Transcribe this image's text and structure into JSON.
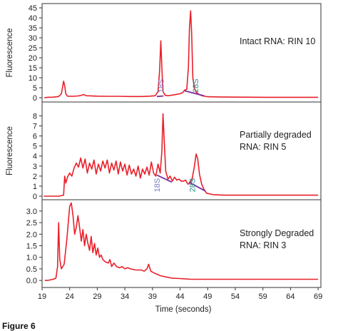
{
  "caption": "Figure 6",
  "chart_data": {
    "type": "line",
    "xlabel": "Time (seconds)",
    "xlim": [
      19,
      69.5
    ],
    "xticks": [
      "19",
      "24",
      "29",
      "34",
      "39",
      "44",
      "49",
      "54",
      "59",
      "64",
      "69"
    ],
    "color": "#e8202a",
    "baseline_color": "#7b2fa0",
    "panels": [
      {
        "ylabel": "Fluorescence",
        "ylim": [
          0,
          45
        ],
        "yticks": [
          "0",
          "5",
          "10",
          "15",
          "20",
          "25",
          "30",
          "35",
          "40",
          "45"
        ],
        "yvals": [
          0,
          5,
          10,
          15,
          20,
          25,
          30,
          35,
          40,
          45
        ],
        "annotation": [
          "Intact RNA: RIN 10"
        ],
        "peak_labels": [
          {
            "text": "18S",
            "x": 41.0,
            "y": 2.5,
            "cls": "peak18"
          },
          {
            "text": "28S",
            "x": 47.3,
            "y": 2.5,
            "cls": "peak28"
          }
        ],
        "baselines": [
          [
            [
              39.8,
              0.6
            ],
            [
              41.0,
              0.9
            ]
          ],
          [
            [
              44.8,
              3.5
            ],
            [
              48.3,
              1.0
            ]
          ]
        ],
        "series": {
          "x": [
            19.4,
            20,
            21,
            22,
            22.5,
            22.9,
            23.1,
            23.3,
            23.6,
            24.5,
            25.5,
            26,
            26.5,
            27,
            29,
            31,
            33,
            35,
            37,
            38.5,
            39.5,
            40,
            40.3,
            40.5,
            40.7,
            40.9,
            41.3,
            41.8,
            43,
            44,
            44.5,
            44.8,
            45.2,
            45.5,
            45.7,
            45.9,
            46.1,
            46.3,
            46.6,
            47,
            47.5,
            48,
            49,
            51,
            55,
            60,
            65,
            69
          ],
          "y": [
            0,
            0.2,
            0.3,
            0.6,
            2,
            8.3,
            6,
            2,
            0.8,
            0.7,
            0.9,
            1.1,
            1.6,
            1,
            0.8,
            0.7,
            0.7,
            0.6,
            0.6,
            0.8,
            1,
            3,
            14,
            28.5,
            15,
            3,
            1.2,
            1,
            1.5,
            2,
            2.6,
            3.8,
            4.2,
            15,
            35,
            43.5,
            32,
            10,
            4.5,
            2.5,
            1.5,
            1.0,
            0.5,
            0.4,
            0.3,
            0.2,
            0.2,
            0.2
          ]
        }
      },
      {
        "ylabel": "Fluorescence",
        "ylim": [
          0,
          8.6
        ],
        "yticks": [
          "0",
          "1",
          "2",
          "3",
          "4",
          "5",
          "6",
          "7",
          "8"
        ],
        "yvals": [
          0,
          1,
          2,
          3,
          4,
          5,
          6,
          7,
          8
        ],
        "annotation": [
          "Partially degraded",
          "RNA: RIN 5"
        ],
        "peak_labels": [
          {
            "text": "18S",
            "x": 40.3,
            "y": 0.4,
            "cls": "peak18"
          },
          {
            "text": "28S",
            "x": 46.7,
            "y": 0.4,
            "cls": "peak28"
          }
        ],
        "baselines": [
          [
            [
              39.8,
              2.1
            ],
            [
              42.5,
              1.4
            ]
          ],
          [
            [
              45.6,
              1.4
            ],
            [
              48.6,
              0.5
            ]
          ]
        ],
        "series": {
          "x": [
            19.3,
            20,
            21,
            22,
            22.9,
            23.1,
            23.3,
            23.6,
            24.0,
            24.4,
            24.8,
            25.2,
            25.6,
            26.0,
            26.4,
            26.8,
            27.2,
            27.6,
            28.0,
            28.4,
            28.8,
            29.2,
            29.6,
            30.0,
            30.4,
            30.8,
            31.2,
            31.6,
            32.0,
            32.4,
            32.8,
            33.2,
            33.6,
            34.0,
            34.4,
            34.8,
            35.2,
            35.6,
            36.0,
            36.4,
            36.8,
            37.2,
            37.6,
            38.0,
            38.4,
            38.8,
            39.2,
            39.6,
            40.0,
            40.4,
            40.7,
            40.9,
            41.1,
            41.4,
            41.8,
            42.2,
            42.6,
            43.0,
            43.4,
            43.8,
            44.2,
            44.6,
            45.0,
            45.4,
            45.8,
            46.2,
            46.6,
            46.9,
            47.2,
            47.5,
            47.9,
            48.3,
            48.8,
            50,
            52,
            55,
            60,
            65,
            69
          ],
          "y": [
            0,
            0,
            0,
            0,
            0.1,
            2,
            1.3,
            1.9,
            2.3,
            2,
            2.8,
            3.3,
            2.9,
            3.8,
            2.8,
            3.7,
            2.3,
            3.3,
            2.7,
            3.6,
            2.2,
            3.2,
            2.5,
            3.5,
            2.8,
            3.6,
            2.3,
            3.3,
            2.6,
            3.5,
            2.2,
            3.4,
            2.5,
            3.2,
            2.1,
            3.1,
            2.2,
            2.7,
            2.0,
            3.0,
            1.8,
            2.7,
            2.2,
            2.9,
            2.1,
            3.4,
            2.3,
            2.0,
            3.2,
            2.3,
            4.5,
            8.2,
            5.8,
            2.5,
            1.7,
            2.0,
            1.5,
            1.9,
            1.6,
            1.7,
            1.5,
            1.5,
            1.6,
            1.2,
            1.3,
            1.8,
            3,
            4.2,
            3.7,
            2.2,
            1.2,
            0.7,
            0.3,
            0.15,
            0.1,
            0.1,
            0.1,
            0.1,
            0.1
          ]
        }
      },
      {
        "ylabel": "",
        "ylim": [
          -0.15,
          3.35
        ],
        "yticks": [
          "0.0",
          "0.5",
          "1.0",
          "1.5",
          "2.0",
          "2.5",
          "3.0"
        ],
        "yvals": [
          0,
          0.5,
          1,
          1.5,
          2,
          2.5,
          3
        ],
        "annotation": [
          "Strongly Degraded",
          "RNA: RIN 3"
        ],
        "peak_labels": [],
        "baselines": [],
        "series": {
          "x": [
            19.5,
            20,
            21,
            21.5,
            21.8,
            22.0,
            22.2,
            22.5,
            23.0,
            23.5,
            24.0,
            24.3,
            24.6,
            24.9,
            25.2,
            25.5,
            25.8,
            26.1,
            26.4,
            26.7,
            27.0,
            27.3,
            27.6,
            27.9,
            28.2,
            28.5,
            28.8,
            29.1,
            29.4,
            29.7,
            30.0,
            30.5,
            31,
            31.3,
            31.6,
            32,
            32.5,
            33,
            33.5,
            34,
            34.5,
            35,
            36,
            37,
            37.5,
            38,
            38.3,
            38.7,
            39.5,
            40.5,
            41.5,
            42.5,
            44,
            46,
            48,
            50,
            53,
            56,
            60,
            64,
            69
          ],
          "y": [
            0,
            0,
            0.05,
            0.1,
            0.6,
            2.5,
            0.9,
            0.5,
            0.7,
            1.8,
            3.2,
            3.35,
            2.8,
            2.0,
            2.3,
            2.8,
            2.3,
            1.7,
            2.2,
            1.5,
            2.0,
            1.6,
            1.3,
            1.9,
            1.2,
            1.6,
            1.1,
            1.4,
            1.0,
            1.1,
            0.9,
            0.8,
            0.75,
            0.9,
            0.6,
            0.75,
            0.6,
            0.55,
            0.6,
            0.5,
            0.55,
            0.5,
            0.45,
            0.45,
            0.4,
            0.5,
            0.7,
            0.4,
            0.3,
            0.2,
            0.15,
            0.1,
            0.08,
            0.05,
            0.05,
            0.05,
            0.05,
            0.05,
            0.05,
            0.05,
            0.05
          ]
        }
      }
    ]
  }
}
